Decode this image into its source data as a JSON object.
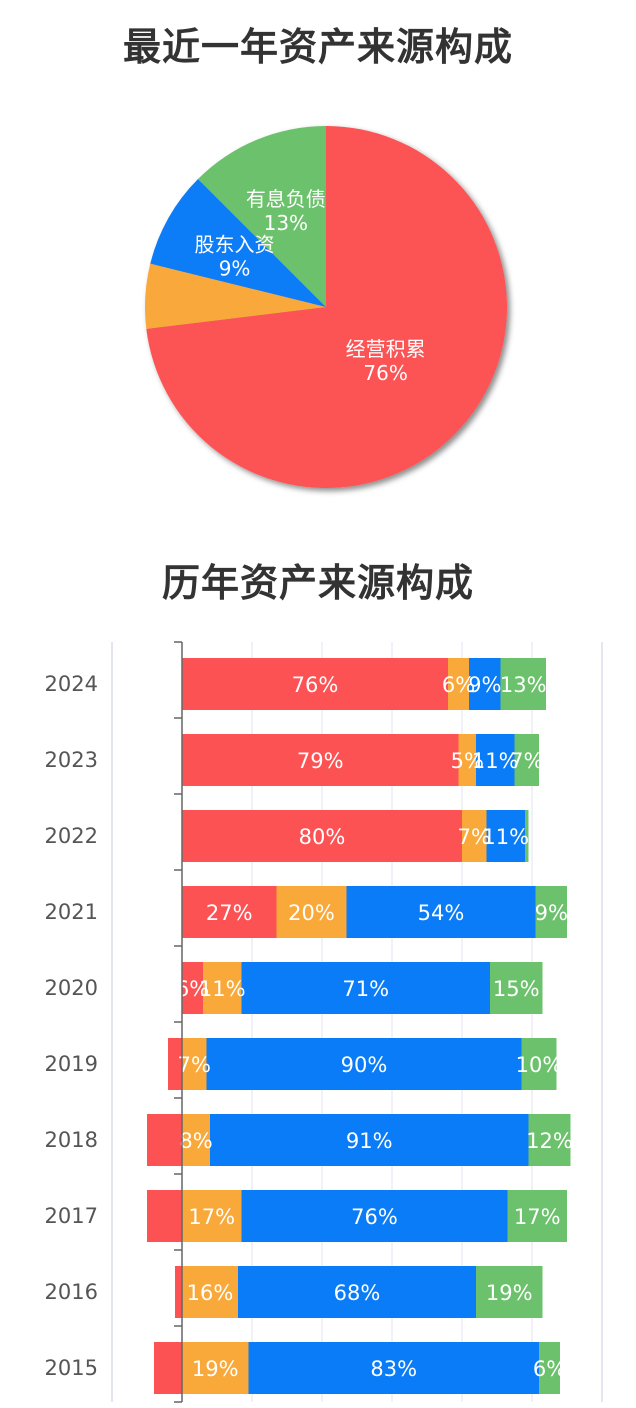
{
  "titles": {
    "pie": "最近一年资产来源构成",
    "bar": "历年资产来源构成"
  },
  "colors": {
    "经营积累": "#fc5254",
    "其他": "#f9a83a",
    "股东入资": "#0a7cf7",
    "有息负债": "#6cc16c",
    "axis": "#666666",
    "grid": "#e3e6ef"
  },
  "chart_data": [
    {
      "type": "pie",
      "slices": [
        {
          "name": "经营积累",
          "value": 76,
          "label": "76%",
          "color": "#fc5254",
          "show_label": true
        },
        {
          "name": "",
          "value": 6,
          "label": "",
          "color": "#f9a83a",
          "show_label": false
        },
        {
          "name": "股东入资",
          "value": 9,
          "label": "9%",
          "color": "#0a7cf7",
          "show_label": true
        },
        {
          "name": "有息负债",
          "value": 13,
          "label": "13%",
          "color": "#6cc16c",
          "show_label": true
        }
      ]
    },
    {
      "type": "bar",
      "orientation": "horizontal",
      "stacked": true,
      "categories": [
        "2024",
        "2023",
        "2022",
        "2021",
        "2020",
        "2019",
        "2018",
        "2017",
        "2016",
        "2015"
      ],
      "series_colors": [
        "#fc5254",
        "#f9a83a",
        "#0a7cf7",
        "#6cc16c"
      ],
      "rows": [
        {
          "year": "2024",
          "values": [
            76,
            6,
            9,
            13
          ],
          "labels": [
            "76%",
            "6%",
            "9%",
            "13%"
          ]
        },
        {
          "year": "2023",
          "values": [
            79,
            5,
            11,
            7
          ],
          "labels": [
            "79%",
            "5%",
            "11%",
            "7%"
          ]
        },
        {
          "year": "2022",
          "values": [
            80,
            7,
            11,
            1
          ],
          "labels": [
            "80%",
            "7%",
            "11%",
            ""
          ]
        },
        {
          "year": "2021",
          "values": [
            27,
            20,
            54,
            9
          ],
          "labels": [
            "27%",
            "20%",
            "54%",
            "9%"
          ]
        },
        {
          "year": "2020",
          "values": [
            6,
            11,
            71,
            15
          ],
          "labels": [
            "6%",
            "11%",
            "71%",
            "15%"
          ]
        },
        {
          "year": "2019",
          "values": [
            -4,
            7,
            90,
            10
          ],
          "labels": [
            "",
            "7%",
            "90%",
            "10%"
          ]
        },
        {
          "year": "2018",
          "values": [
            -10,
            8,
            91,
            12
          ],
          "labels": [
            "",
            "8%",
            "91%",
            "12%"
          ]
        },
        {
          "year": "2017",
          "values": [
            -10,
            17,
            76,
            17
          ],
          "labels": [
            "",
            "17%",
            "76%",
            "17%"
          ]
        },
        {
          "year": "2016",
          "values": [
            -2,
            16,
            68,
            19
          ],
          "labels": [
            "",
            "16%",
            "68%",
            "19%"
          ]
        },
        {
          "year": "2015",
          "values": [
            -8,
            19,
            83,
            6
          ],
          "labels": [
            "",
            "19%",
            "83%",
            "6%"
          ]
        }
      ],
      "xlim": [
        -20,
        120
      ],
      "grid": true
    }
  ]
}
